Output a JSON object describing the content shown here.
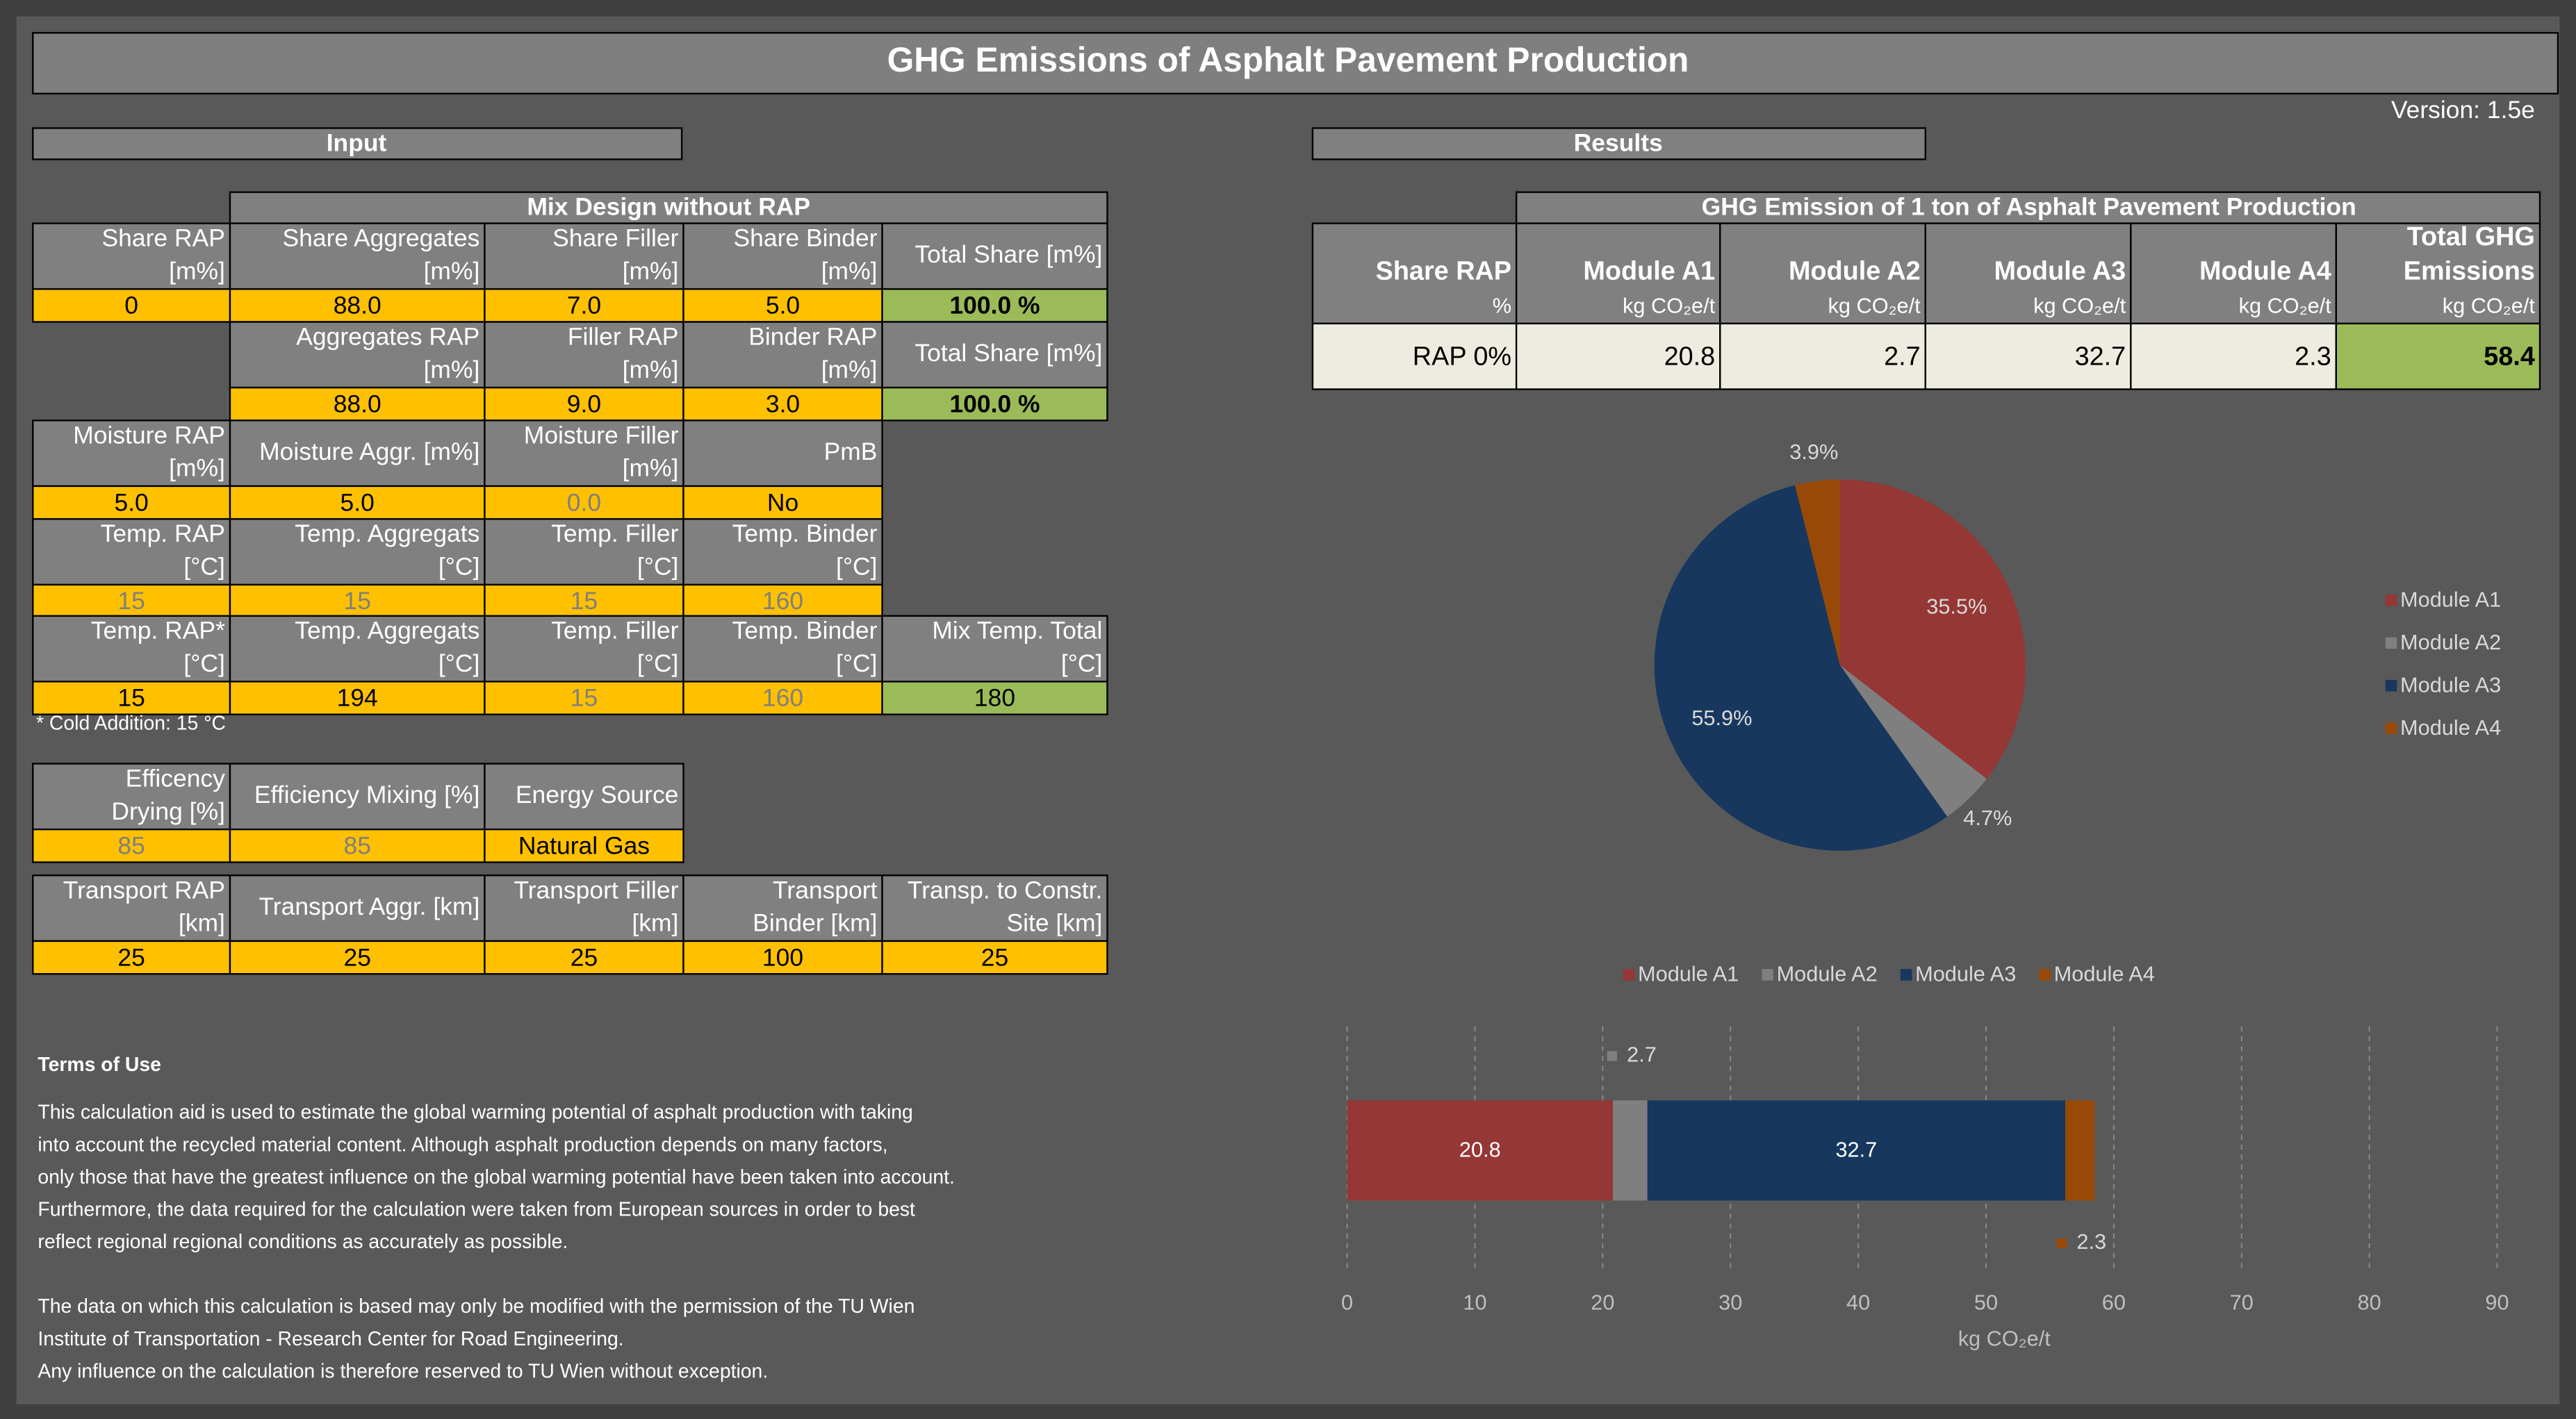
{
  "header": {
    "title": "GHG Emissions of Asphalt Pavement Production",
    "version": "Version: 1.5e"
  },
  "input": {
    "title": "Input",
    "mix_design_title": "Mix Design without RAP",
    "groups": [
      {
        "headers": [
          [
            "Share RAP",
            "[m%]"
          ],
          [
            "Share Aggregates",
            "[m%]"
          ],
          [
            "Share Filler",
            "[m%]"
          ],
          [
            "Share Binder",
            "[m%]"
          ],
          [
            "Total Share [m%]"
          ]
        ],
        "values": [
          {
            "text": "0",
            "kind": "input"
          },
          {
            "text": "88.0",
            "kind": "input"
          },
          {
            "text": "7.0",
            "kind": "input"
          },
          {
            "text": "5.0",
            "kind": "input"
          },
          {
            "text": "100.0 %",
            "kind": "total"
          }
        ]
      },
      {
        "headers": [
          [
            "Aggregates RAP",
            "[m%]"
          ],
          [
            "Filler RAP",
            "[m%]"
          ],
          [
            "Binder RAP",
            "[m%]"
          ],
          [
            "Total Share [m%]"
          ]
        ],
        "values": [
          {
            "text": "88.0",
            "kind": "input"
          },
          {
            "text": "9.0",
            "kind": "input"
          },
          {
            "text": "3.0",
            "kind": "input"
          },
          {
            "text": "100.0 %",
            "kind": "total"
          }
        ]
      },
      {
        "headers": [
          [
            "Moisture RAP",
            "[m%]"
          ],
          [
            "Moisture Aggr. [m%]"
          ],
          [
            "Moisture Filler",
            "[m%]"
          ],
          [
            "PmB"
          ]
        ],
        "values": [
          {
            "text": "5.0",
            "kind": "input"
          },
          {
            "text": "5.0",
            "kind": "input"
          },
          {
            "text": "0.0",
            "kind": "muted"
          },
          {
            "text": "No",
            "kind": "input"
          }
        ]
      },
      {
        "headers": [
          [
            "Temp. RAP",
            "[°C]"
          ],
          [
            "Temp. Aggregats",
            "[°C]"
          ],
          [
            "Temp. Filler",
            "[°C]"
          ],
          [
            "Temp. Binder",
            "[°C]"
          ]
        ],
        "values": [
          {
            "text": "15",
            "kind": "muted"
          },
          {
            "text": "15",
            "kind": "muted"
          },
          {
            "text": "15",
            "kind": "muted"
          },
          {
            "text": "160",
            "kind": "muted"
          }
        ]
      },
      {
        "headers": [
          [
            "Temp. RAP*",
            "[°C]"
          ],
          [
            "Temp. Aggregats",
            "[°C]"
          ],
          [
            "Temp. Filler",
            "[°C]"
          ],
          [
            "Temp. Binder",
            "[°C]"
          ],
          [
            "Mix Temp. Total",
            "[°C]"
          ]
        ],
        "values": [
          {
            "text": "15",
            "kind": "input"
          },
          {
            "text": "194",
            "kind": "input"
          },
          {
            "text": "15",
            "kind": "muted"
          },
          {
            "text": "160",
            "kind": "muted"
          },
          {
            "text": "180",
            "kind": "computed"
          }
        ]
      },
      {
        "headers": [
          [
            "Efficency",
            "Drying [%]"
          ],
          [
            "Efficiency Mixing [%]"
          ],
          [
            "Energy Source"
          ]
        ],
        "values": [
          {
            "text": "85",
            "kind": "muted"
          },
          {
            "text": "85",
            "kind": "muted"
          },
          {
            "text": "Natural Gas",
            "kind": "input"
          }
        ]
      },
      {
        "headers": [
          [
            "Transport RAP",
            "[km]"
          ],
          [
            "Transport Aggr. [km]"
          ],
          [
            "Transport Filler",
            "[km]"
          ],
          [
            "Transport",
            "Binder [km]"
          ],
          [
            "Transp. to Constr.",
            "Site [km]"
          ]
        ],
        "values": [
          {
            "text": "25",
            "kind": "input"
          },
          {
            "text": "25",
            "kind": "input"
          },
          {
            "text": "25",
            "kind": "input"
          },
          {
            "text": "100",
            "kind": "input"
          },
          {
            "text": "25",
            "kind": "input"
          }
        ]
      }
    ],
    "note": "* Cold Addition: 15 °C"
  },
  "results": {
    "title": "Results",
    "table_title": "GHG Emission of 1 ton of Asphalt Pavement Production",
    "headers": [
      [
        "Share RAP",
        "%"
      ],
      [
        "Module A1",
        "kg CO₂e/t"
      ],
      [
        "Module A2",
        "kg CO₂e/t"
      ],
      [
        "Module A3",
        "kg CO₂e/t"
      ],
      [
        "Module A4",
        "kg CO₂e/t"
      ],
      [
        "Total GHG",
        "Emissions",
        "kg CO₂e/t"
      ]
    ],
    "row": [
      "RAP 0%",
      20.8,
      2.7,
      32.7,
      2.3,
      58.4
    ]
  },
  "chart_data": [
    {
      "type": "pie",
      "categories": [
        "Module A1",
        "Module A2",
        "Module A3",
        "Module A4"
      ],
      "values": [
        35.5,
        4.7,
        55.9,
        3.9
      ],
      "value_labels": [
        "35.5%",
        "4.7%",
        "55.9%",
        "3.9%"
      ],
      "colors": [
        "#953735",
        "#7f7f7f",
        "#17375e",
        "#984807"
      ],
      "legend": "right"
    },
    {
      "type": "bar",
      "orientation": "horizontal",
      "stacked": true,
      "series": [
        {
          "name": "Module A1",
          "color": "#953735",
          "values": [
            20.8
          ]
        },
        {
          "name": "Module A2",
          "color": "#7f7f7f",
          "values": [
            2.7
          ]
        },
        {
          "name": "Module A3",
          "color": "#17375e",
          "values": [
            32.7
          ]
        },
        {
          "name": "Module A4",
          "color": "#984807",
          "values": [
            2.3
          ]
        }
      ],
      "xlim": [
        0,
        90
      ],
      "xticks": [
        0,
        10,
        20,
        30,
        40,
        50,
        60,
        70,
        80,
        90
      ],
      "xlabel": "kg CO₂e/t",
      "grid": true,
      "legend": "top"
    }
  ],
  "terms": {
    "title": "Terms of Use",
    "paragraphs": [
      [
        "This calculation aid is used to estimate the global warming potential of asphalt production with taking",
        "into account the recycled material content. Although asphalt production depends on many factors,",
        "only those that have the greatest influence on the global warming potential have been taken into account.",
        "Furthermore, the data required for the calculation were taken from European sources in order to best",
        " reflect regional regional conditions as accurately as possible."
      ],
      [
        "The data on which this calculation is based may only be modified with the permission of the TU Wien",
        "Institute of Transportation - Research Center for Road Engineering.",
        "Any influence on the calculation is therefore reserved to TU Wien without exception."
      ]
    ]
  }
}
